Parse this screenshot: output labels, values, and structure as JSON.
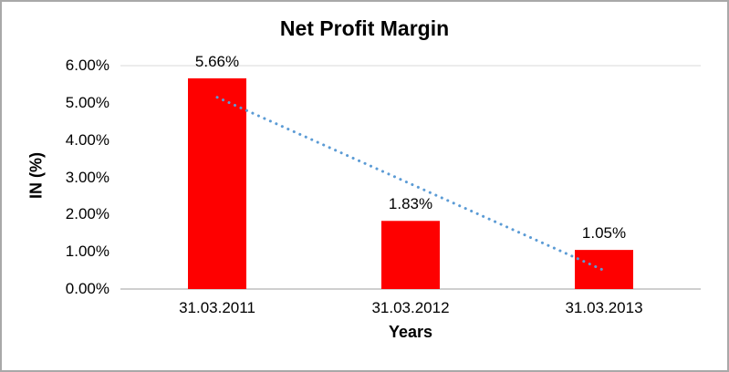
{
  "chart_data": {
    "type": "bar",
    "title": "Net Profit Margin",
    "categories": [
      "31.03.2011",
      "31.03.2012",
      "31.03.2013"
    ],
    "values": [
      5.66,
      1.83,
      1.05
    ],
    "value_labels": [
      "5.66%",
      "1.83%",
      "1.05%"
    ],
    "xlabel": "Years",
    "ylabel": "IN (%)",
    "ylim": [
      0,
      6
    ],
    "ytick_step": 1,
    "ytick_labels": [
      "0.00%",
      "1.00%",
      "2.00%",
      "3.00%",
      "4.00%",
      "5.00%",
      "6.00%"
    ],
    "bar_color": "#fe0000",
    "axis_line_color": "#bfbfbf",
    "top_border_color": "#d9d9d9",
    "trendline": {
      "type": "linear",
      "style": "dotted",
      "color": "#5b9bd5",
      "start_value": 5.15,
      "end_value": 0.5
    },
    "legend_position": "none",
    "grid": "top-border-only"
  }
}
